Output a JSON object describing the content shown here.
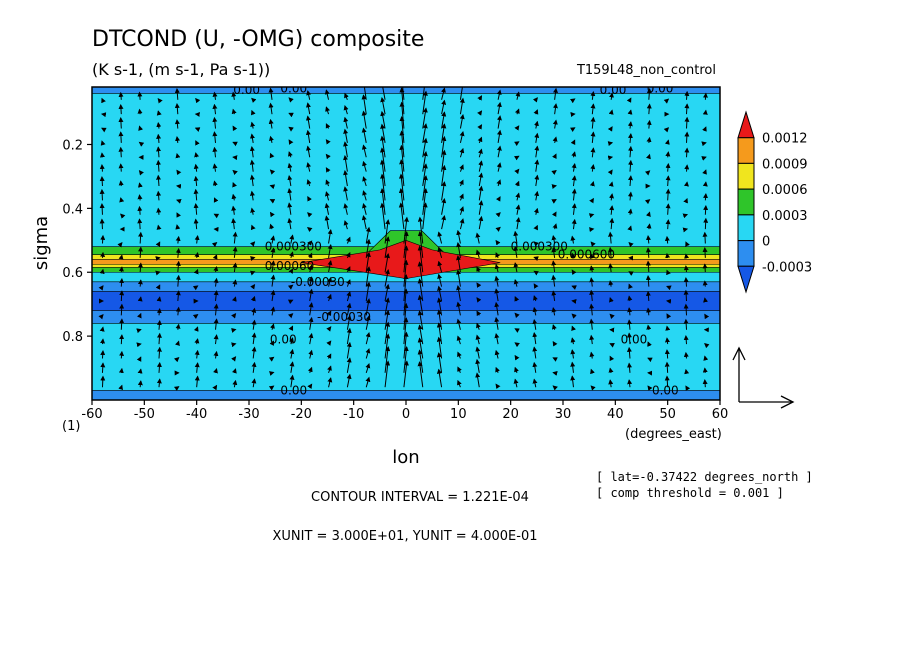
{
  "chart_data": {
    "type": "heatmap",
    "title": "DTCOND (U, -OMG) composite",
    "subtitle": "(K s-1, (m s-1, Pa s-1))",
    "run_label": "T159L48_non_control",
    "xlabel": "lon",
    "x_unit_label": "(degrees_east)",
    "ylabel": "sigma",
    "corner_label": "(1)",
    "xlim": [
      -60,
      60
    ],
    "ylim": [
      1.0,
      0.02
    ],
    "x_ticks": [
      -60,
      -50,
      -40,
      -30,
      -20,
      -10,
      0,
      10,
      20,
      30,
      40,
      50,
      60
    ],
    "y_ticks": [
      0.2,
      0.4,
      0.6,
      0.8
    ],
    "colorbar": {
      "labels": [
        "0.0012",
        "0.0009",
        "0.0006",
        "0.0003",
        "0",
        "-0.0003"
      ],
      "colors": [
        "#e8191a",
        "#f59a1c",
        "#f0e51e",
        "#2fc52a",
        "#28d7f3",
        "#2d8ef0",
        "#1558e6"
      ]
    },
    "bands": [
      {
        "y0": 0.02,
        "y1": 0.04,
        "level": -0.0003,
        "color": "#2d8ef0"
      },
      {
        "y0": 0.04,
        "y1": 0.52,
        "level": 0.0,
        "color": "#28d7f3"
      },
      {
        "y0": 0.52,
        "y1": 0.545,
        "level": 0.0003,
        "color": "#2fc52a"
      },
      {
        "y0": 0.545,
        "y1": 0.56,
        "level": 0.0006,
        "color": "#f0e51e"
      },
      {
        "y0": 0.56,
        "y1": 0.575,
        "level": 0.0009,
        "color": "#f59a1c"
      },
      {
        "y0": 0.575,
        "y1": 0.585,
        "level": 0.0006,
        "color": "#f0e51e"
      },
      {
        "y0": 0.585,
        "y1": 0.6,
        "level": 0.0003,
        "color": "#2fc52a"
      },
      {
        "y0": 0.6,
        "y1": 0.63,
        "level": 0.0,
        "color": "#28d7f3"
      },
      {
        "y0": 0.63,
        "y1": 0.66,
        "level": -0.0003,
        "color": "#2d8ef0"
      },
      {
        "y0": 0.66,
        "y1": 0.72,
        "level": -0.0006,
        "color": "#1558e6"
      },
      {
        "y0": 0.72,
        "y1": 0.76,
        "level": -0.0003,
        "color": "#2d8ef0"
      },
      {
        "y0": 0.76,
        "y1": 0.97,
        "level": 0.0,
        "color": "#28d7f3"
      },
      {
        "y0": 0.97,
        "y1": 1.0,
        "level": -0.0003,
        "color": "#2d8ef0"
      }
    ],
    "peak": {
      "lon": 0,
      "sigma": 0.57,
      "value": 0.0012,
      "color": "#e8191a"
    },
    "contour_labels": [
      {
        "lon": -33,
        "sigma": 0.03,
        "text": "0.00"
      },
      {
        "lon": -24,
        "sigma": 0.025,
        "text": "0.00"
      },
      {
        "lon": 37,
        "sigma": 0.03,
        "text": "0.00"
      },
      {
        "lon": 46,
        "sigma": 0.025,
        "text": "0.00"
      },
      {
        "lon": -27,
        "sigma": 0.52,
        "text": "0.000300"
      },
      {
        "lon": 20,
        "sigma": 0.52,
        "text": "0.000300"
      },
      {
        "lon": 29,
        "sigma": 0.545,
        "text": "0.000600"
      },
      {
        "lon": -27,
        "sigma": 0.58,
        "text": "0.00060"
      },
      {
        "lon": -22,
        "sigma": 0.63,
        "text": "-0.00030"
      },
      {
        "lon": -17,
        "sigma": 0.74,
        "text": "-0.00030"
      },
      {
        "lon": -26,
        "sigma": 0.81,
        "text": "0.00"
      },
      {
        "lon": 41,
        "sigma": 0.81,
        "text": "0.00"
      },
      {
        "lon": -24,
        "sigma": 0.97,
        "text": "0.00"
      },
      {
        "lon": 47,
        "sigma": 0.97,
        "text": "0.00"
      }
    ]
  },
  "notes": {
    "lat": "[ lat=-0.37422 degrees_north ]",
    "threshold": "[ comp threshold = 0.001 ]",
    "contour_interval": "CONTOUR INTERVAL = 1.221E-04",
    "units": "XUNIT = 3.000E+01, YUNIT = 4.000E-01"
  }
}
